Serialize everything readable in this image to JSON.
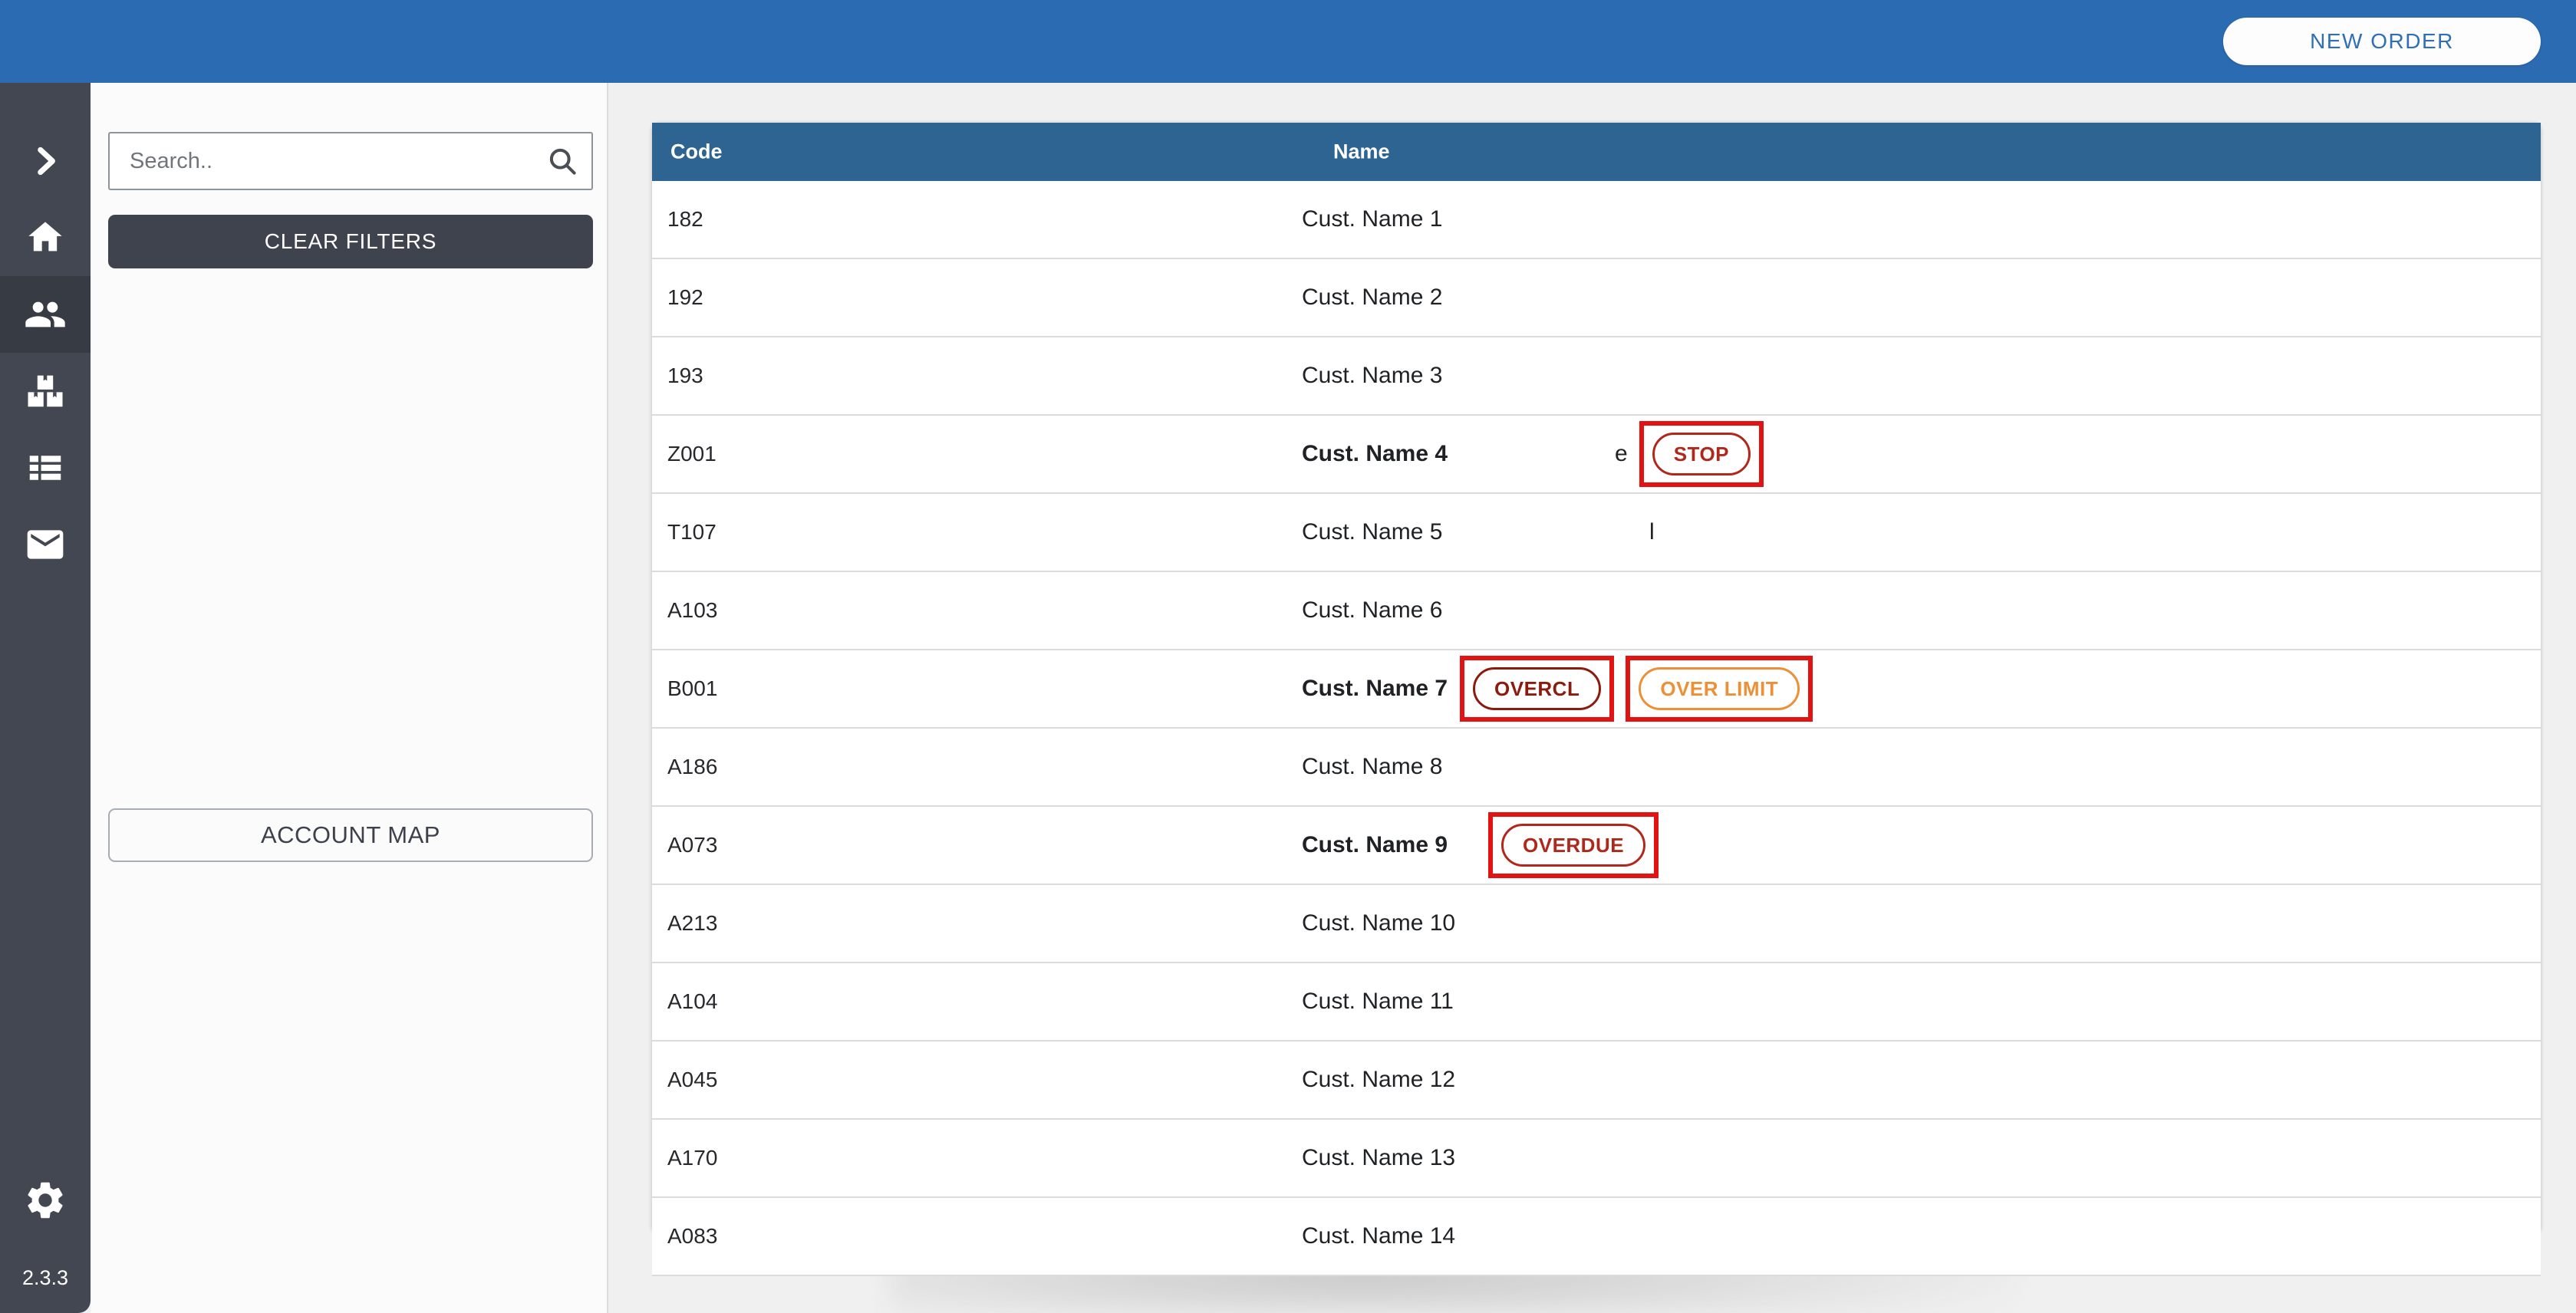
{
  "topbar": {
    "new_order_label": "NEW ORDER",
    "background_color": "#2b6bb1",
    "button_text_color": "#2f6fb5"
  },
  "sidebar": {
    "background_color": "#434751",
    "active_item_color": "#373b43",
    "items": [
      {
        "id": "expand",
        "icon": "chevron-right-icon",
        "active": false
      },
      {
        "id": "home",
        "icon": "home-icon",
        "active": false
      },
      {
        "id": "customers",
        "icon": "people-icon",
        "active": true
      },
      {
        "id": "stock",
        "icon": "boxes-icon",
        "active": false
      },
      {
        "id": "orders",
        "icon": "list-icon",
        "active": false
      },
      {
        "id": "messages",
        "icon": "mail-icon",
        "active": false
      }
    ],
    "settings_icon": "gear-icon",
    "version": "2.3.3"
  },
  "filters": {
    "search_placeholder": "Search..",
    "search_icon": "search-icon",
    "clear_button": "CLEAR FILTERS",
    "account_map_button": "ACCOUNT MAP"
  },
  "table": {
    "header_color": "#2e6491",
    "columns": [
      "Code",
      "Name"
    ],
    "rows": [
      {
        "code": "182",
        "name": "Cust. Name 1",
        "bold": false,
        "extras": []
      },
      {
        "code": "192",
        "name": "Cust. Name 2",
        "bold": false,
        "extras": []
      },
      {
        "code": "193",
        "name": "Cust. Name 3",
        "bold": false,
        "extras": []
      },
      {
        "code": "Z001",
        "name": "Cust. Name 4",
        "bold": true,
        "extras": [
          {
            "type": "text",
            "text": "e"
          },
          {
            "type": "badge",
            "label": "STOP",
            "variant": "red",
            "boxed": true
          }
        ]
      },
      {
        "code": "T107",
        "name": "Cust. Name 5",
        "bold": false,
        "extras": [
          {
            "type": "text",
            "text": "l"
          }
        ]
      },
      {
        "code": "A103",
        "name": "Cust. Name 6",
        "bold": false,
        "extras": []
      },
      {
        "code": "B001",
        "name": "Cust. Name 7",
        "bold": true,
        "extras": [
          {
            "type": "badge",
            "label": "OVERCL",
            "variant": "darkred",
            "boxed": true
          },
          {
            "type": "badge",
            "label": "OVER LIMIT",
            "variant": "orange",
            "boxed": true
          }
        ]
      },
      {
        "code": "A186",
        "name": "Cust. Name 8",
        "bold": false,
        "extras": []
      },
      {
        "code": "A073",
        "name": "Cust. Name 9",
        "bold": true,
        "extras": [
          {
            "type": "badge",
            "label": "OVERDUE",
            "variant": "red",
            "boxed": true
          }
        ]
      },
      {
        "code": "A213",
        "name": "Cust. Name 10",
        "bold": false,
        "extras": []
      },
      {
        "code": "A104",
        "name": "Cust. Name 11",
        "bold": false,
        "extras": []
      },
      {
        "code": "A045",
        "name": "Cust. Name 12",
        "bold": false,
        "extras": []
      },
      {
        "code": "A170",
        "name": "Cust. Name 13",
        "bold": false,
        "extras": []
      },
      {
        "code": "A083",
        "name": "Cust. Name 14",
        "bold": false,
        "extras": []
      }
    ],
    "badge_colors": {
      "red": "#b0281b",
      "darkred": "#8e1a0e",
      "orange": "#ef8f35",
      "annotation_box": "#e21313"
    }
  }
}
